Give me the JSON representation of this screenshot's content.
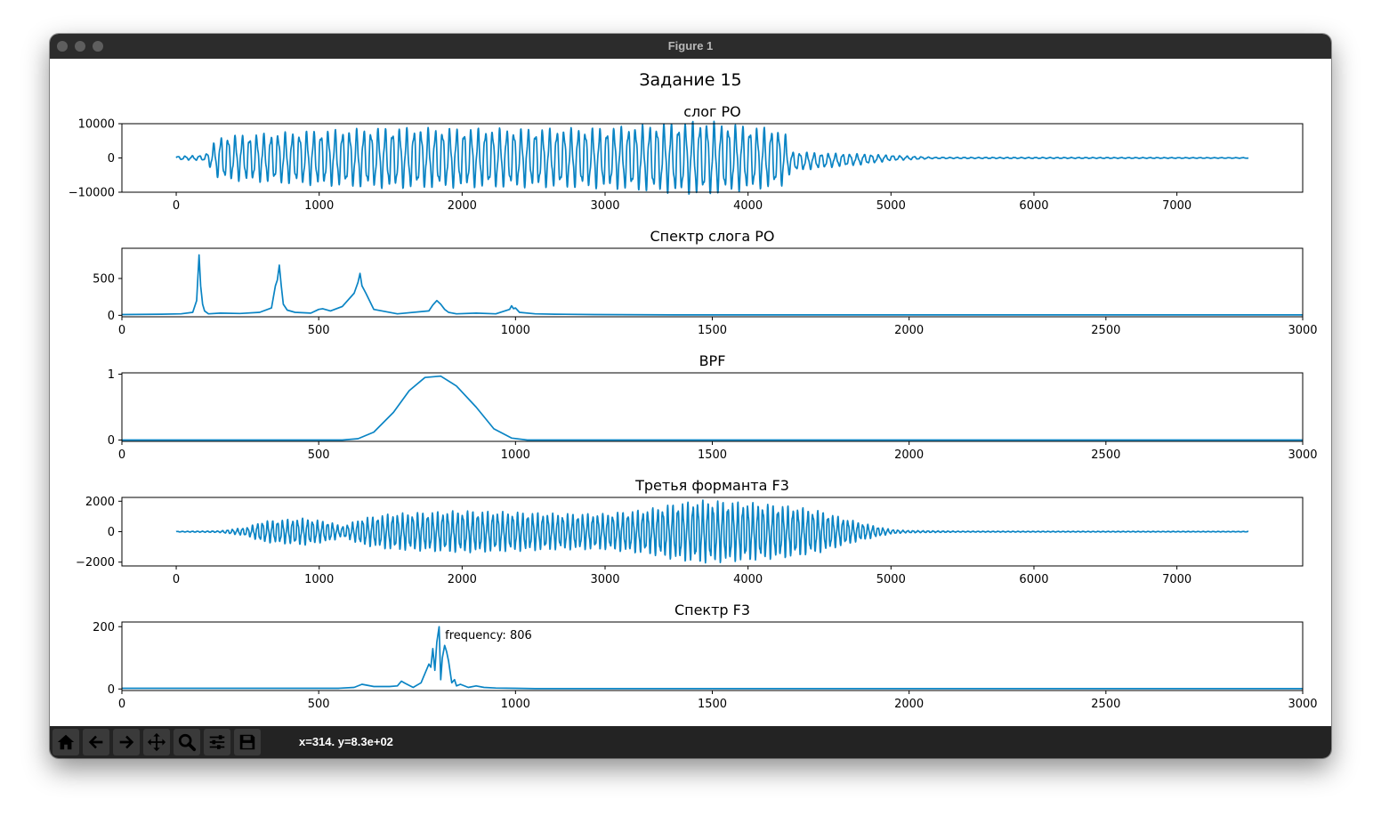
{
  "window": {
    "title": "Figure 1"
  },
  "figure": {
    "suptitle": "Задание 15"
  },
  "status": {
    "coords": "x=314. y=8.3e+02"
  },
  "toolbar": {
    "buttons": [
      {
        "name": "home-icon"
      },
      {
        "name": "back-icon"
      },
      {
        "name": "forward-icon"
      },
      {
        "name": "pan-icon"
      },
      {
        "name": "zoom-icon"
      },
      {
        "name": "configure-subplots-icon"
      },
      {
        "name": "save-icon"
      }
    ]
  },
  "colors": {
    "line": "#0a84c4",
    "titlebar": "#2c2c2c",
    "toolbar": "#232323"
  },
  "chart_data": [
    {
      "type": "line",
      "title": "слог РО",
      "xlabel": "",
      "ylabel": "",
      "xlim": [
        -380,
        7880
      ],
      "ylim": [
        -10000,
        10000
      ],
      "xticks": [
        0,
        1000,
        2000,
        3000,
        4000,
        5000,
        6000,
        7000
      ],
      "xticklabels": [
        "0",
        "1000",
        "2000",
        "3000",
        "4000",
        "5000",
        "6000",
        "7000"
      ],
      "yticks": [
        10000,
        0,
        -10000
      ],
      "yticklabels": [
        "10000",
        "0",
        "−10000"
      ],
      "series": [
        {
          "generator": "oscillation",
          "x": [
            0,
            200,
            300,
            500,
            1000,
            1500,
            2000,
            2500,
            3000,
            3500,
            3700,
            4000,
            4250,
            4300,
            4500,
            4800,
            5000,
            5300,
            7500
          ],
          "envelope": [
            500,
            800,
            6500,
            7000,
            8200,
            9000,
            8800,
            8700,
            9000,
            10500,
            11000,
            9500,
            8500,
            3000,
            2300,
            1600,
            800,
            200,
            100
          ],
          "offset": [
            0,
            0,
            0,
            0,
            0,
            0,
            0,
            0,
            0,
            0,
            0,
            0,
            0,
            -1000,
            -800,
            -400,
            0,
            0,
            0
          ],
          "period": 50
        }
      ],
      "grid": false
    },
    {
      "type": "line",
      "title": "Спектр слога РО",
      "xlabel": "",
      "ylabel": "",
      "xlim": [
        0,
        3000
      ],
      "ylim": [
        -20,
        910
      ],
      "xticks": [
        0,
        500,
        1000,
        1500,
        2000,
        2500,
        3000
      ],
      "xticklabels": [
        "0",
        "500",
        "1000",
        "1500",
        "2000",
        "2500",
        "3000"
      ],
      "yticks": [
        500,
        0
      ],
      "yticklabels": [
        "500",
        "0"
      ],
      "series": [
        {
          "x": [
            0,
            100,
            150,
            180,
            190,
            196,
            200,
            205,
            210,
            220,
            250,
            300,
            350,
            380,
            390,
            395,
            400,
            405,
            410,
            420,
            440,
            480,
            500,
            510,
            530,
            560,
            590,
            600,
            605,
            610,
            620,
            640,
            700,
            780,
            790,
            800,
            810,
            820,
            830,
            850,
            900,
            950,
            985,
            990,
            995,
            1000,
            1010,
            1050,
            1100,
            1200,
            1400,
            3000
          ],
          "y": [
            10,
            15,
            20,
            40,
            200,
            820,
            400,
            150,
            60,
            20,
            30,
            25,
            40,
            100,
            400,
            480,
            680,
            400,
            150,
            70,
            40,
            30,
            80,
            90,
            60,
            120,
            300,
            450,
            570,
            400,
            300,
            80,
            20,
            60,
            140,
            200,
            150,
            80,
            40,
            20,
            30,
            20,
            80,
            130,
            90,
            100,
            40,
            20,
            15,
            10,
            5,
            5
          ]
        }
      ],
      "grid": false
    },
    {
      "type": "line",
      "title": "BPF",
      "xlabel": "",
      "ylabel": "",
      "xlim": [
        0,
        3000
      ],
      "ylim": [
        -0.02,
        1.02
      ],
      "xticks": [
        0,
        500,
        1000,
        1500,
        2000,
        2500,
        3000
      ],
      "xticklabels": [
        "0",
        "500",
        "1000",
        "1500",
        "2000",
        "2500",
        "3000"
      ],
      "yticks": [
        1,
        0
      ],
      "yticklabels": [
        "1",
        "0"
      ],
      "series": [
        {
          "x": [
            0,
            500,
            560,
            600,
            640,
            690,
            730,
            770,
            810,
            850,
            900,
            945,
            990,
            1030,
            1100,
            3000
          ],
          "y": [
            0,
            0,
            0,
            0.02,
            0.12,
            0.42,
            0.75,
            0.95,
            0.97,
            0.82,
            0.5,
            0.17,
            0.03,
            0,
            0,
            0
          ]
        }
      ],
      "grid": false
    },
    {
      "type": "line",
      "title": "Третья форманта F3",
      "xlabel": "",
      "ylabel": "",
      "xlim": [
        -380,
        7880
      ],
      "ylim": [
        -2250,
        2250
      ],
      "xticks": [
        0,
        1000,
        2000,
        3000,
        4000,
        5000,
        6000,
        7000
      ],
      "xticklabels": [
        "0",
        "1000",
        "2000",
        "3000",
        "4000",
        "5000",
        "6000",
        "7000"
      ],
      "yticks": [
        2000,
        0,
        -2000
      ],
      "yticklabels": [
        "2000",
        "0",
        "−2000"
      ],
      "series": [
        {
          "generator": "oscillation",
          "x": [
            0,
            300,
            500,
            600,
            900,
            1100,
            1150,
            1200,
            1300,
            1500,
            2000,
            2400,
            2700,
            3000,
            3300,
            3500,
            3700,
            4000,
            4300,
            4500,
            4600,
            4750,
            4900,
            5000,
            5100,
            5500,
            7500
          ],
          "envelope": [
            20,
            50,
            300,
            700,
            900,
            600,
            350,
            500,
            900,
            1200,
            1400,
            1300,
            1200,
            1200,
            1500,
            1900,
            2100,
            1950,
            1700,
            1400,
            1100,
            700,
            350,
            150,
            80,
            30,
            20
          ],
          "offset": [
            0
          ],
          "period": 35
        }
      ],
      "grid": false
    },
    {
      "type": "line",
      "title": "Спектр F3",
      "xlabel": "",
      "ylabel": "",
      "xlim": [
        0,
        3000
      ],
      "ylim": [
        -5,
        215
      ],
      "xticks": [
        0,
        500,
        1000,
        1500,
        2000,
        2500,
        3000
      ],
      "xticklabels": [
        "0",
        "500",
        "1000",
        "1500",
        "2000",
        "2500",
        "3000"
      ],
      "yticks": [
        200,
        0
      ],
      "yticklabels": [
        "200",
        "0"
      ],
      "annotation": {
        "text": "frequency: 806",
        "x": 812,
        "y": 175
      },
      "series": [
        {
          "x": [
            0,
            550,
            590,
            610,
            640,
            680,
            700,
            710,
            720,
            740,
            760,
            770,
            780,
            785,
            790,
            795,
            800,
            806,
            810,
            814,
            820,
            825,
            830,
            838,
            845,
            850,
            860,
            880,
            900,
            920,
            950,
            1000,
            1050,
            3000
          ],
          "y": [
            2,
            2,
            5,
            15,
            8,
            8,
            10,
            25,
            18,
            5,
            20,
            50,
            80,
            70,
            130,
            60,
            150,
            200,
            30,
            100,
            140,
            120,
            90,
            20,
            30,
            10,
            15,
            5,
            10,
            5,
            3,
            2,
            1,
            1
          ]
        }
      ],
      "grid": false
    }
  ]
}
